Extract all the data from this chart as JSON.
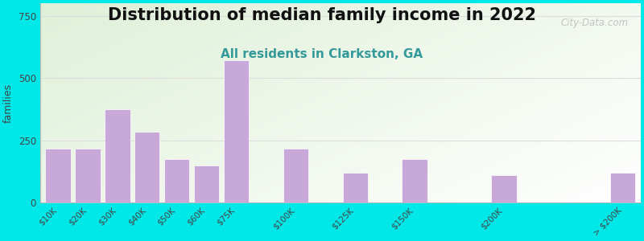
{
  "title": "Distribution of median family income in 2022",
  "subtitle": "All residents in Clarkston, GA",
  "ylabel": "families",
  "categories": [
    "$10K",
    "$20K",
    "$30K",
    "$40K",
    "$50K",
    "$60K",
    "$75K",
    "$100K",
    "$125K",
    "$150K",
    "$200K",
    "> $200K"
  ],
  "values": [
    215,
    215,
    375,
    285,
    175,
    150,
    570,
    215,
    120,
    175,
    110,
    120
  ],
  "bar_color": "#c8a8d8",
  "bar_edge_color": "#ffffff",
  "ylim": [
    0,
    800
  ],
  "yticks": [
    0,
    250,
    500,
    750
  ],
  "outer_bg": "#00e8e8",
  "plot_bg_left": "#dff0d8",
  "plot_bg_right": "#ffffff",
  "title_fontsize": 15,
  "subtitle_fontsize": 11,
  "subtitle_color": "#339999",
  "ylabel_fontsize": 9,
  "watermark": "City-Data.com",
  "bar_positions": [
    0,
    1,
    2,
    3,
    4,
    5,
    6,
    8,
    10,
    12,
    15,
    19
  ],
  "bar_widths": [
    1,
    1,
    1,
    1,
    1,
    1,
    1,
    1,
    1,
    1,
    1,
    1
  ]
}
